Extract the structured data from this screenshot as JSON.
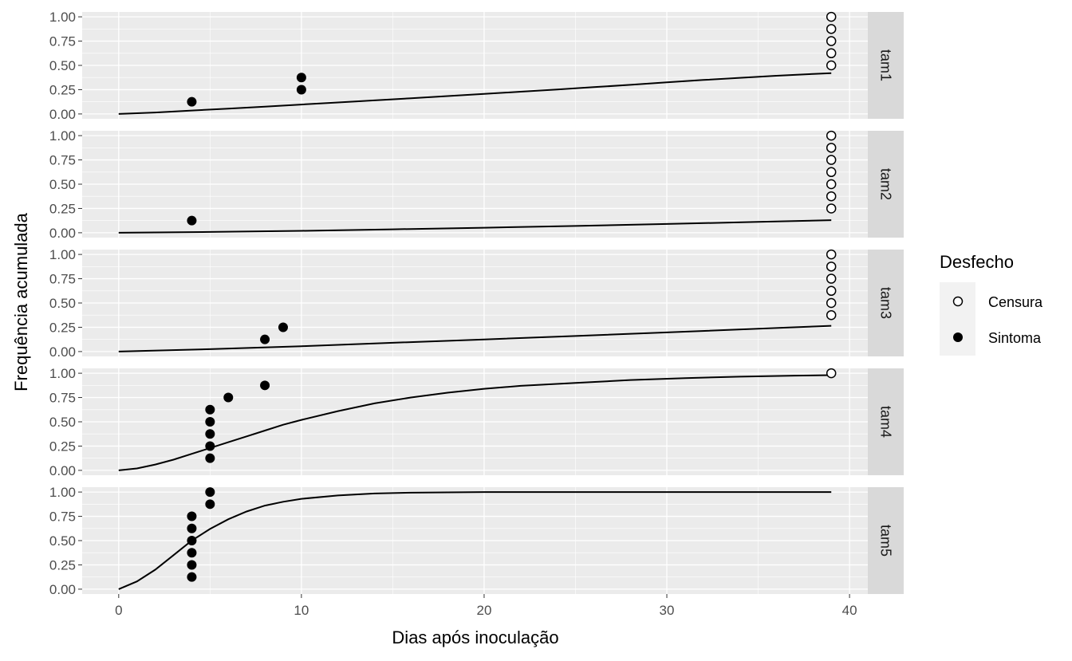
{
  "chart_data": {
    "type": "scatter",
    "xlabel": "Dias após inoculação",
    "ylabel": "Frequência acumulada",
    "xlim": [
      -2,
      41
    ],
    "ylim": [
      -0.05,
      1.05
    ],
    "x_ticks": [
      0,
      10,
      20,
      30,
      40
    ],
    "y_ticks": [
      0,
      0.25,
      0.5,
      0.75,
      1.0
    ],
    "y_tick_labels": [
      "0.00",
      "0.25",
      "0.50",
      "0.75",
      "1.00"
    ],
    "grid": true,
    "legend": {
      "title": "Desfecho",
      "position": "right",
      "entries": [
        {
          "label": "Censura",
          "marker": "open-circle"
        },
        {
          "label": "Sintoma",
          "marker": "filled-circle"
        }
      ]
    },
    "colors": {
      "panel_bg": "#ebebeb",
      "grid": "#ffffff",
      "strip_bg": "#d9d9d9",
      "line": "#000000",
      "point": "#000000"
    },
    "facets": [
      {
        "strip": "tam1",
        "curve": [
          [
            0,
            0
          ],
          [
            2,
            0.015
          ],
          [
            4,
            0.035
          ],
          [
            6,
            0.055
          ],
          [
            8,
            0.076
          ],
          [
            10,
            0.097
          ],
          [
            12,
            0.118
          ],
          [
            14,
            0.14
          ],
          [
            16,
            0.162
          ],
          [
            18,
            0.184
          ],
          [
            20,
            0.206
          ],
          [
            22,
            0.229
          ],
          [
            24,
            0.252
          ],
          [
            26,
            0.276
          ],
          [
            28,
            0.3
          ],
          [
            30,
            0.325
          ],
          [
            32,
            0.35
          ],
          [
            34,
            0.372
          ],
          [
            36,
            0.393
          ],
          [
            38,
            0.412
          ],
          [
            39,
            0.42
          ]
        ],
        "censura": [
          [
            39,
            1.0
          ],
          [
            39,
            0.875
          ],
          [
            39,
            0.75
          ],
          [
            39,
            0.625
          ],
          [
            39,
            0.5
          ]
        ],
        "sintoma": [
          [
            4,
            0.125
          ],
          [
            10,
            0.25
          ],
          [
            10,
            0.375
          ]
        ]
      },
      {
        "strip": "tam2",
        "curve": [
          [
            0,
            0
          ],
          [
            5,
            0.008
          ],
          [
            10,
            0.02
          ],
          [
            15,
            0.035
          ],
          [
            20,
            0.052
          ],
          [
            25,
            0.07
          ],
          [
            30,
            0.09
          ],
          [
            35,
            0.112
          ],
          [
            39,
            0.13
          ]
        ],
        "censura": [
          [
            39,
            1.0
          ],
          [
            39,
            0.875
          ],
          [
            39,
            0.75
          ],
          [
            39,
            0.625
          ],
          [
            39,
            0.5
          ],
          [
            39,
            0.375
          ],
          [
            39,
            0.25
          ]
        ],
        "sintoma": [
          [
            4,
            0.125
          ]
        ]
      },
      {
        "strip": "tam3",
        "curve": [
          [
            0,
            0
          ],
          [
            5,
            0.025
          ],
          [
            10,
            0.055
          ],
          [
            15,
            0.09
          ],
          [
            20,
            0.125
          ],
          [
            25,
            0.16
          ],
          [
            30,
            0.197
          ],
          [
            35,
            0.235
          ],
          [
            39,
            0.265
          ]
        ],
        "censura": [
          [
            39,
            1.0
          ],
          [
            39,
            0.875
          ],
          [
            39,
            0.75
          ],
          [
            39,
            0.625
          ],
          [
            39,
            0.5
          ],
          [
            39,
            0.375
          ]
        ],
        "sintoma": [
          [
            8,
            0.125
          ],
          [
            9,
            0.25
          ]
        ]
      },
      {
        "strip": "tam4",
        "curve": [
          [
            0,
            0
          ],
          [
            1,
            0.02
          ],
          [
            2,
            0.06
          ],
          [
            3,
            0.11
          ],
          [
            4,
            0.17
          ],
          [
            5,
            0.23
          ],
          [
            6,
            0.29
          ],
          [
            7,
            0.35
          ],
          [
            8,
            0.41
          ],
          [
            9,
            0.47
          ],
          [
            10,
            0.52
          ],
          [
            12,
            0.61
          ],
          [
            14,
            0.69
          ],
          [
            16,
            0.75
          ],
          [
            18,
            0.8
          ],
          [
            20,
            0.84
          ],
          [
            22,
            0.87
          ],
          [
            25,
            0.9
          ],
          [
            28,
            0.93
          ],
          [
            31,
            0.95
          ],
          [
            34,
            0.965
          ],
          [
            37,
            0.975
          ],
          [
            39,
            0.98
          ]
        ],
        "censura": [
          [
            39,
            1.0
          ]
        ],
        "sintoma": [
          [
            5,
            0.125
          ],
          [
            5,
            0.25
          ],
          [
            5,
            0.375
          ],
          [
            5,
            0.5
          ],
          [
            5,
            0.625
          ],
          [
            6,
            0.75
          ],
          [
            8,
            0.875
          ]
        ]
      },
      {
        "strip": "tam5",
        "curve": [
          [
            0,
            0
          ],
          [
            1,
            0.08
          ],
          [
            2,
            0.2
          ],
          [
            3,
            0.35
          ],
          [
            4,
            0.5
          ],
          [
            5,
            0.62
          ],
          [
            6,
            0.72
          ],
          [
            7,
            0.8
          ],
          [
            8,
            0.86
          ],
          [
            9,
            0.9
          ],
          [
            10,
            0.93
          ],
          [
            12,
            0.965
          ],
          [
            14,
            0.985
          ],
          [
            16,
            0.993
          ],
          [
            18,
            0.997
          ],
          [
            20,
            1.0
          ],
          [
            25,
            1.0
          ],
          [
            30,
            1.0
          ],
          [
            35,
            1.0
          ],
          [
            39,
            1.0
          ]
        ],
        "censura": [],
        "sintoma": [
          [
            4,
            0.125
          ],
          [
            4,
            0.25
          ],
          [
            4,
            0.375
          ],
          [
            4,
            0.5
          ],
          [
            4,
            0.625
          ],
          [
            4,
            0.75
          ],
          [
            5,
            0.875
          ],
          [
            5,
            1.0
          ]
        ]
      }
    ]
  }
}
